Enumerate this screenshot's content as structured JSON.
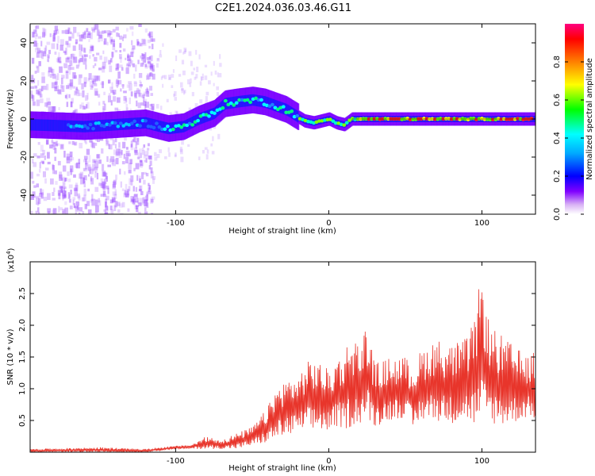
{
  "title": "C2E1.2024.036.03.46.G11",
  "chart_data": [
    {
      "type": "heatmap",
      "xlabel": "Height of straight line (km)",
      "ylabel": "Frequency (Hz)",
      "xlim": [
        -195,
        135
      ],
      "ylim": [
        -50,
        50
      ],
      "xticks": [
        -100,
        0,
        100
      ],
      "yticks": [
        -40,
        -20,
        0,
        20,
        40
      ],
      "grid": false,
      "ridge": {
        "x": [
          -195,
          -160,
          -140,
          -120,
          -105,
          -95,
          -85,
          -75,
          -68,
          -60,
          -50,
          -42,
          -35,
          -28,
          -22,
          -16,
          -10,
          -5,
          0,
          5,
          10,
          15,
          20,
          40,
          60,
          80,
          100,
          120,
          135
        ],
        "freq": [
          -3,
          -4,
          -3,
          -2,
          -5,
          -4,
          0,
          3,
          8,
          9,
          10,
          9,
          7,
          5,
          2,
          -1,
          -2,
          -1,
          0,
          -2,
          -3,
          0,
          0,
          0,
          0,
          0,
          0,
          0,
          0
        ]
      },
      "colorbar": {
        "label": "Normalized spectral amplitude",
        "range": [
          0,
          1
        ],
        "ticks": [
          "0.0",
          "0.2",
          "0.4",
          "0.6",
          "0.8"
        ],
        "tick_values": [
          0.0,
          0.2,
          0.4,
          0.6,
          0.8
        ],
        "colors": [
          "#ffffff",
          "#e6c8f6",
          "#8000ff",
          "#0000ff",
          "#00ffff",
          "#00ff00",
          "#ffff00",
          "#ff8000",
          "#ff0000",
          "#ff0080"
        ]
      }
    },
    {
      "type": "line",
      "xlabel": "Height of straight line (km)",
      "ylabel": "SNR (10 * v/v)",
      "yscale_note": "(x10",
      "yscale_exp": "4",
      "yscale_close": ")",
      "xlim": [
        -195,
        135
      ],
      "ylim": [
        0,
        3.0
      ],
      "xticks": [
        -100,
        0,
        100
      ],
      "yticks": [
        0.5,
        1.0,
        1.5,
        2.0,
        2.5
      ],
      "ytick_labels": [
        "0.5",
        "1.0",
        "1.5",
        "2.0",
        "2.5"
      ],
      "grid": false,
      "color": "#e8352b",
      "series": [
        {
          "envelope": {
            "x": [
              -195,
              -150,
              -120,
              -100,
              -90,
              -80,
              -70,
              -60,
              -50,
              -40,
              -35,
              -30,
              -25,
              -20,
              -15,
              -10,
              -5,
              0,
              5,
              10,
              15,
              20,
              25,
              30,
              40,
              50,
              55,
              60,
              70,
              80,
              90,
              95,
              100,
              105,
              110,
              120,
              130,
              135
            ],
            "low": [
              0.0,
              0.0,
              0.0,
              0.05,
              0.05,
              0.05,
              0.05,
              0.05,
              0.1,
              0.15,
              0.2,
              0.25,
              0.25,
              0.3,
              0.35,
              0.3,
              0.35,
              0.3,
              0.4,
              0.35,
              0.4,
              0.45,
              0.5,
              0.4,
              0.5,
              0.55,
              0.3,
              0.5,
              0.5,
              0.45,
              0.5,
              0.4,
              0.3,
              0.5,
              0.4,
              0.45,
              0.55,
              0.5
            ],
            "high": [
              0.05,
              0.08,
              0.05,
              0.1,
              0.12,
              0.25,
              0.2,
              0.3,
              0.4,
              0.7,
              1.0,
              1.1,
              1.2,
              1.2,
              1.4,
              1.5,
              1.4,
              1.3,
              1.5,
              1.6,
              1.9,
              1.7,
              2.05,
              1.4,
              1.5,
              1.5,
              1.4,
              1.6,
              1.8,
              1.7,
              1.8,
              2.1,
              2.9,
              2.0,
              1.9,
              1.7,
              1.5,
              1.6
            ]
          }
        }
      ]
    }
  ]
}
